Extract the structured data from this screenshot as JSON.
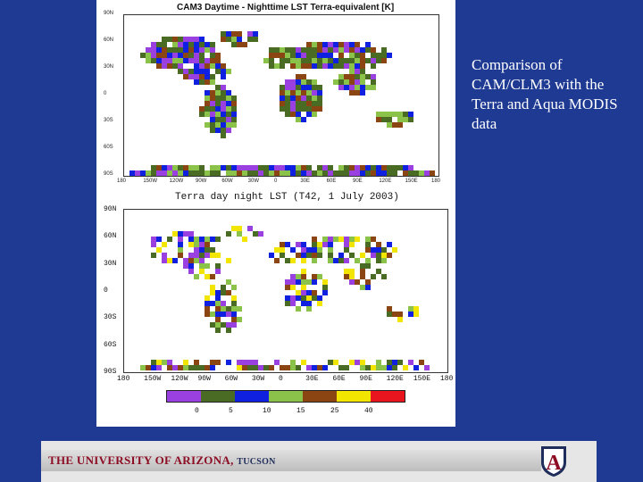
{
  "slide": {
    "side_text": "Comparison of CAM/CLM3 with the Terra and Aqua MODIS data"
  },
  "map_top": {
    "title": "CAM3 Daytime - Nighttime LST Terra-equivalent [K]",
    "lat_ticks": [
      "90N",
      "60N",
      "30N",
      "0",
      "30S",
      "60S",
      "90S"
    ],
    "lon_ticks": [
      "180",
      "150W",
      "120W",
      "90W",
      "60W",
      "30W",
      "0",
      "30E",
      "60E",
      "90E",
      "120E",
      "150E",
      "180"
    ]
  },
  "map_bottom": {
    "title": "Terra day night LST (T42, 1 July 2003)",
    "lat_ticks": [
      "90N",
      "60N",
      "30N",
      "0",
      "30S",
      "60S",
      "90S"
    ],
    "lon_ticks": [
      "180",
      "150W",
      "120W",
      "90W",
      "60W",
      "30W",
      "0",
      "30E",
      "60E",
      "90E",
      "120E",
      "150E",
      "180"
    ]
  },
  "colorbar": {
    "colors": [
      "#9a3fe0",
      "#4a6b23",
      "#1020e0",
      "#8bc34a",
      "#8b4513",
      "#f2e600",
      "#e8141e"
    ],
    "labels": [
      "0",
      "5",
      "10",
      "15",
      "25",
      "40"
    ]
  },
  "footer": {
    "university": "THE UNIVERSITY OF ARIZONA",
    "city": "TUCSON",
    "logo_text": "A",
    "colors": {
      "brand_red": "#8c0d24",
      "brand_blue": "#1f2d5a"
    }
  }
}
